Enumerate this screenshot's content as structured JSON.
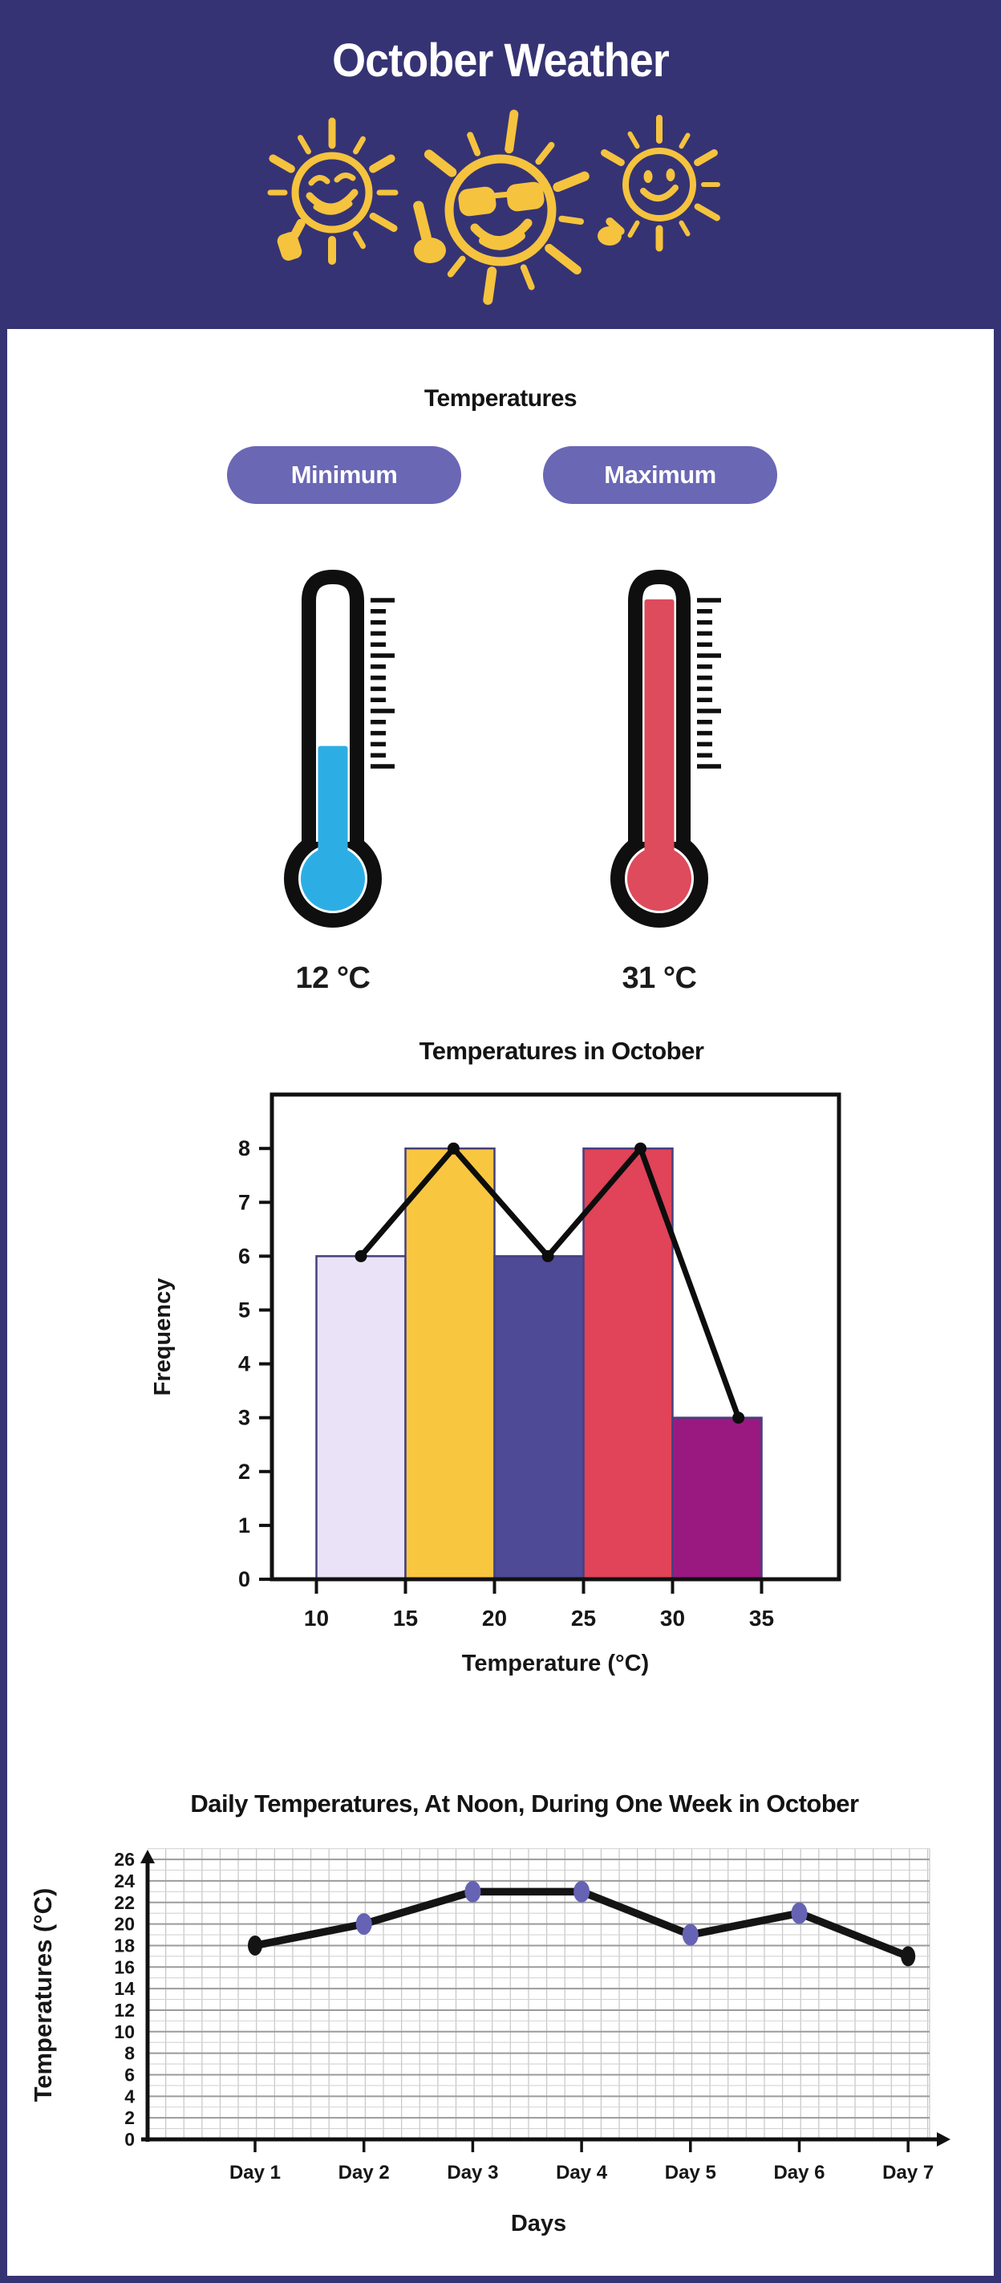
{
  "header": {
    "title": "October Weather",
    "bg_color": "#363374",
    "sun_color": "#F5C33E",
    "suns": [
      "winking-sun-thumbs-up",
      "sunglasses-sun-pointing-finger",
      "smiling-sun-pointing"
    ]
  },
  "temperatures": {
    "heading": "Temperatures",
    "pill_color": "#6A67B5",
    "pills": [
      {
        "label": "Minimum"
      },
      {
        "label": "Maximum"
      }
    ],
    "thermometers": [
      {
        "name": "minimum",
        "reading": "12 °C",
        "fill_color": "#2CAEE5",
        "fill_percent": 36
      },
      {
        "name": "maximum",
        "reading": "31 °C",
        "fill_color": "#DE4B5C",
        "fill_percent": 94
      }
    ]
  },
  "chart_data": [
    {
      "type": "bar",
      "subtype": "histogram-with-frequency-polygon",
      "title": "Temperatures in October",
      "xlabel": "Temperature (°C)",
      "ylabel": "Frequency",
      "bin_edges": [
        10,
        15,
        20,
        25,
        30,
        35
      ],
      "bin_labels": [
        "10",
        "15",
        "20",
        "25",
        "30",
        "35"
      ],
      "values": [
        6,
        8,
        6,
        8,
        3
      ],
      "bar_colors": [
        "#EAE3F8",
        "#F9C640",
        "#4E4A95",
        "#E14358",
        "#9A1980"
      ],
      "bar_border_color": "#44407E",
      "line_color": "#0d0d0d",
      "line_x": [
        12.5,
        17.7,
        23.0,
        28.2,
        33.7
      ],
      "line_y": [
        6,
        8,
        6,
        8,
        3
      ],
      "yticks": [
        0,
        1,
        2,
        3,
        4,
        5,
        6,
        7,
        8
      ],
      "ylim": [
        0,
        9
      ],
      "xlim": [
        7.5,
        39.3
      ],
      "grid": false,
      "legend": "none"
    },
    {
      "type": "line",
      "title": "Daily Temperatures, At Noon, During One Week in October",
      "xlabel": "Days",
      "ylabel": "Temperatures (°C)",
      "categories": [
        "Day 1",
        "Day 2",
        "Day 3",
        "Day 4",
        "Day 5",
        "Day 6",
        "Day 7"
      ],
      "values": [
        18,
        20,
        23,
        23,
        19,
        21,
        17
      ],
      "yticks": [
        0,
        2,
        4,
        6,
        8,
        10,
        12,
        14,
        16,
        18,
        20,
        22,
        24,
        26
      ],
      "ylim": [
        0,
        27
      ],
      "grid": true,
      "line_color": "#141414",
      "point_color": "#6663B4",
      "endpoint_color": "#141414",
      "legend": "none"
    }
  ]
}
